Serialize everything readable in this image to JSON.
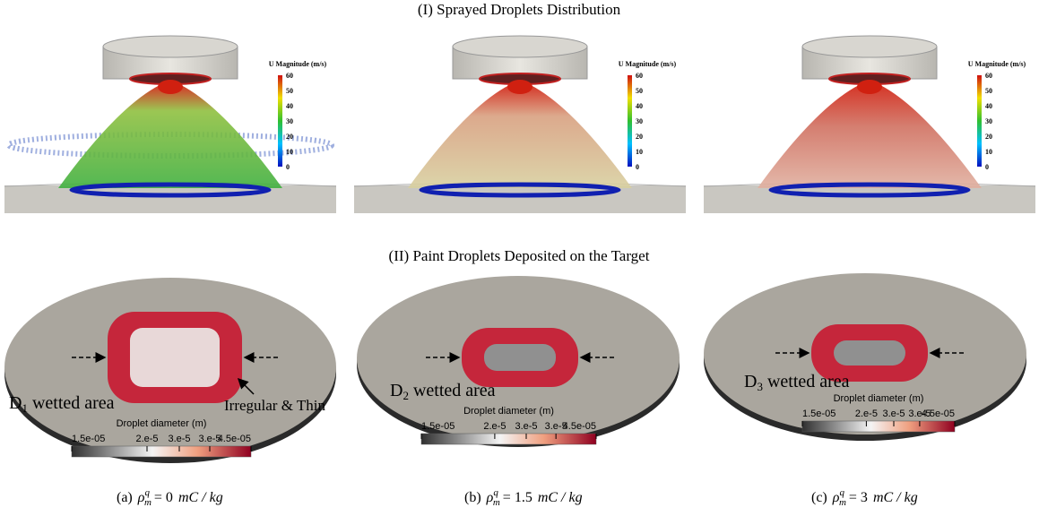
{
  "header": {
    "title_top": "(I) Sprayed Droplets Distribution",
    "title_bottom": "(II) Paint Droplets Deposited on the Target"
  },
  "spray_panels": [
    {
      "colorbar": {
        "title": "U Magnitude (m/s)",
        "ticks": [
          "60",
          "50",
          "40",
          "30",
          "20",
          "10",
          "0"
        ]
      }
    },
    {
      "colorbar": {
        "title": "U Magnitude (m/s)",
        "ticks": [
          "60",
          "50",
          "40",
          "30",
          "20",
          "10",
          "0"
        ]
      }
    },
    {
      "colorbar": {
        "title": "U Magnitude (m/s)",
        "ticks": [
          "60",
          "50",
          "40",
          "30",
          "20",
          "10",
          "0"
        ]
      }
    }
  ],
  "deposit_panels": [
    {
      "label": {
        "base": "D",
        "sub": "1",
        "text": "wetted area"
      },
      "note": "Irregular & Thin",
      "colorbar": {
        "title": "Droplet diameter (m)",
        "ticks": [
          "1.5e-05",
          "2.e-5",
          "3.e-5",
          "3.e-5",
          "4.5e-05"
        ]
      },
      "caption": {
        "tag": "(a)",
        "symbol": "ρ",
        "sup": "q",
        "sub": "m",
        "value": "=  0",
        "unit": "mC / kg"
      }
    },
    {
      "label": {
        "base": "D",
        "sub": "2",
        "text": "wetted area"
      },
      "colorbar": {
        "title": "Droplet diameter (m)",
        "ticks": [
          "1.5e-05",
          "2.e-5",
          "3.e-5",
          "3.e-5",
          "4.5e-05"
        ]
      },
      "caption": {
        "tag": "(b)",
        "symbol": "ρ",
        "sup": "q",
        "sub": "m",
        "value": "=  1.5",
        "unit": "mC / kg"
      }
    },
    {
      "label": {
        "base": "D",
        "sub": "3",
        "text": "wetted area"
      },
      "colorbar": {
        "title": "Droplet diameter (m)",
        "ticks": [
          "1.5e-05",
          "2.e-5",
          "3.e-5",
          "3.e-5",
          "4.5e-05"
        ]
      },
      "caption": {
        "tag": "(c)",
        "symbol": "ρ",
        "sup": "q",
        "sub": "m",
        "value": "=  3",
        "unit": "mC / kg"
      }
    }
  ]
}
